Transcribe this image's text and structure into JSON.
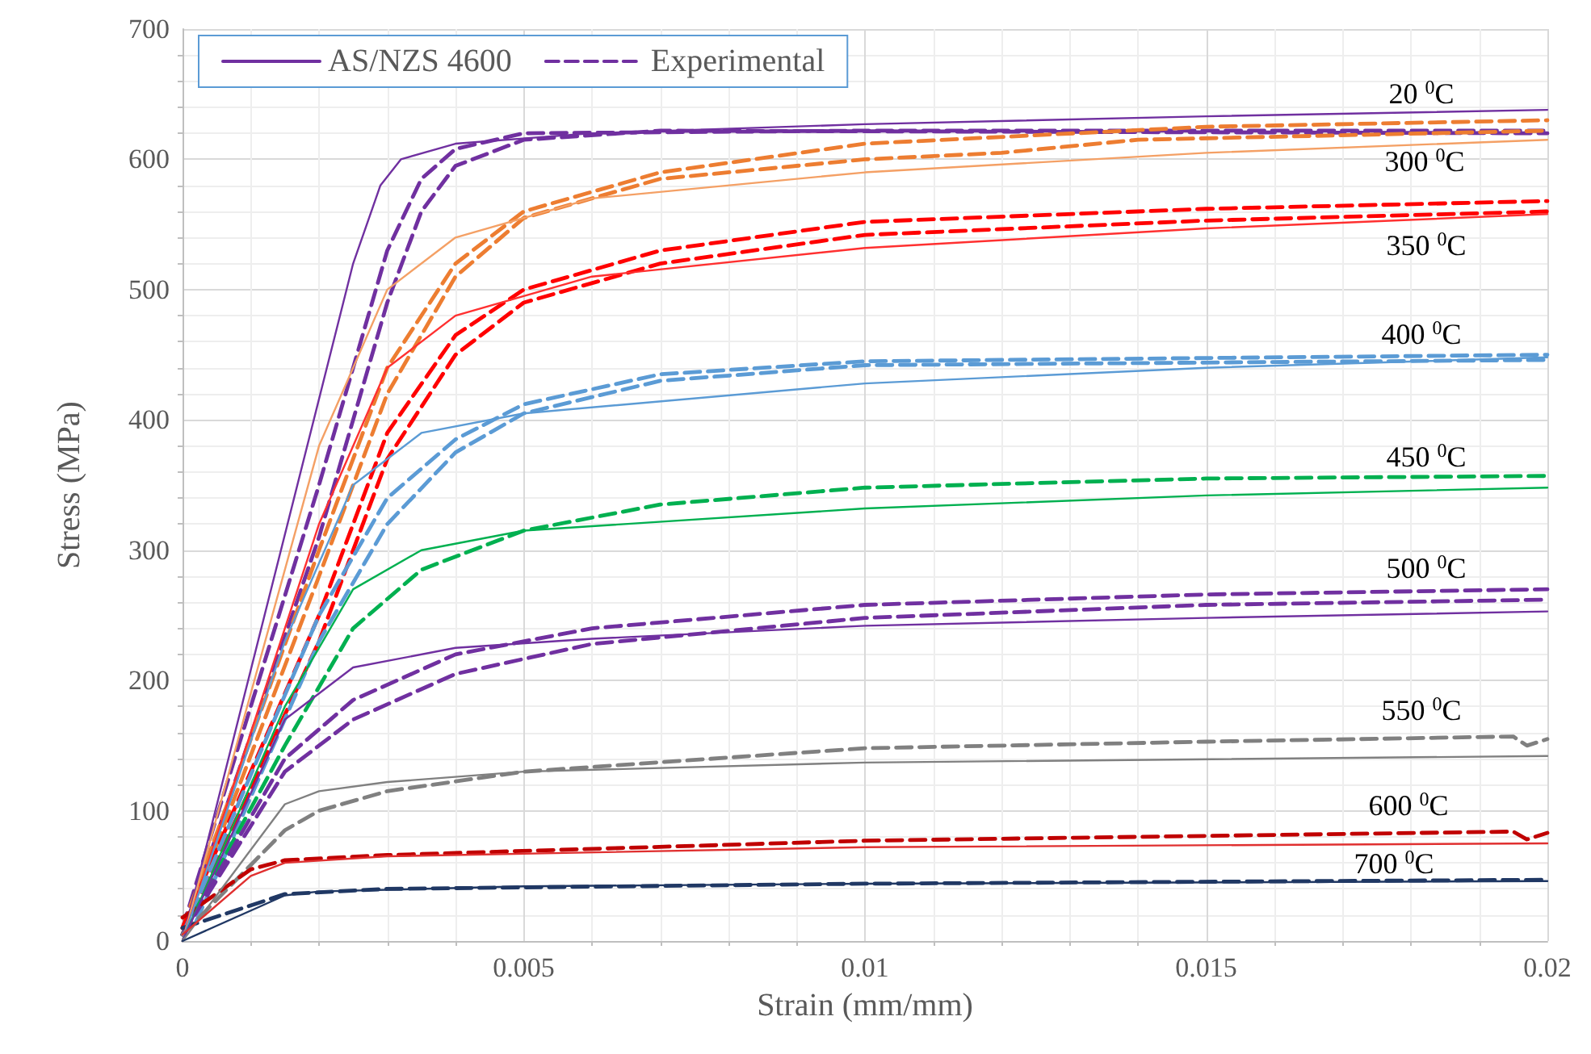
{
  "chart_data": {
    "type": "line",
    "xlabel": "Strain (mm/mm)",
    "ylabel": "Stress (MPa)",
    "xlim": [
      0,
      0.02
    ],
    "xticks": [
      0,
      0.005,
      0.01,
      0.015,
      0.02
    ],
    "ylim": [
      0,
      700
    ],
    "yticks": [
      0,
      100,
      200,
      300,
      400,
      500,
      600,
      700
    ],
    "grid": true,
    "legend": "top left",
    "marker": "none",
    "series": [
      {
        "name": "AS/NZS 4600",
        "color": "#7030a0",
        "line_style": "solid",
        "x": [
          0,
          0.0025,
          0.0029,
          0.0032,
          0.004,
          0.006,
          0.01,
          0.015,
          0.02
        ],
        "values": [
          0,
          520,
          580,
          600,
          612,
          620,
          627,
          633,
          638
        ]
      },
      {
        "name": "Experimental",
        "color": "#7030a0",
        "line_style": "dashed",
        "x": [
          0,
          0.002,
          0.003,
          0.0035,
          0.004,
          0.005,
          0.01,
          0.02
        ],
        "values": [
          10,
          350,
          530,
          585,
          608,
          620,
          622,
          622
        ]
      },
      {
        "color": "#7030a0",
        "line_style": "dashed",
        "x": [
          0,
          0.002,
          0.003,
          0.0035,
          0.004,
          0.005,
          0.007,
          0.02
        ],
        "values": [
          5,
          310,
          490,
          560,
          595,
          615,
          622,
          620
        ]
      },
      {
        "color": "#f4a065",
        "line_style": "solid",
        "x": [
          0,
          0.002,
          0.003,
          0.004,
          0.006,
          0.01,
          0.015,
          0.02
        ],
        "values": [
          0,
          380,
          500,
          540,
          570,
          590,
          605,
          615
        ]
      },
      {
        "color": "#ed7d31",
        "line_style": "dashed",
        "x": [
          0,
          0.002,
          0.003,
          0.004,
          0.005,
          0.007,
          0.01,
          0.015,
          0.02
        ],
        "values": [
          10,
          300,
          440,
          520,
          560,
          590,
          612,
          625,
          630
        ]
      },
      {
        "color": "#ed7d31",
        "line_style": "dashed",
        "x": [
          0,
          0.002,
          0.003,
          0.004,
          0.005,
          0.007,
          0.01,
          0.012,
          0.014,
          0.02
        ],
        "values": [
          5,
          280,
          420,
          510,
          555,
          585,
          600,
          605,
          615,
          622
        ]
      },
      {
        "color": "#ff3030",
        "line_style": "solid",
        "x": [
          0,
          0.002,
          0.003,
          0.004,
          0.006,
          0.01,
          0.015,
          0.02
        ],
        "values": [
          0,
          320,
          440,
          480,
          510,
          532,
          547,
          558
        ]
      },
      {
        "color": "#ff0000",
        "line_style": "dashed",
        "x": [
          0,
          0.002,
          0.003,
          0.004,
          0.005,
          0.007,
          0.01,
          0.015,
          0.02
        ],
        "values": [
          10,
          250,
          390,
          465,
          500,
          530,
          552,
          562,
          568
        ]
      },
      {
        "color": "#ff0000",
        "line_style": "dashed",
        "x": [
          0,
          0.002,
          0.003,
          0.004,
          0.005,
          0.007,
          0.01,
          0.015,
          0.02
        ],
        "values": [
          5,
          230,
          370,
          450,
          490,
          520,
          542,
          553,
          560
        ]
      },
      {
        "color": "#5b9bd5",
        "line_style": "solid",
        "x": [
          0,
          0.0015,
          0.0025,
          0.0035,
          0.005,
          0.01,
          0.015,
          0.02
        ],
        "values": [
          0,
          230,
          350,
          390,
          405,
          428,
          440,
          448
        ]
      },
      {
        "color": "#5b9bd5",
        "line_style": "dashed",
        "x": [
          0,
          0.002,
          0.003,
          0.004,
          0.005,
          0.007,
          0.01,
          0.02
        ],
        "values": [
          5,
          250,
          340,
          385,
          412,
          435,
          445,
          450
        ]
      },
      {
        "color": "#5b9bd5",
        "line_style": "dashed",
        "x": [
          0.0002,
          0.002,
          0.003,
          0.004,
          0.005,
          0.007,
          0.01,
          0.02
        ],
        "values": [
          15,
          230,
          320,
          375,
          405,
          430,
          442,
          446
        ]
      },
      {
        "color": "#00b050",
        "line_style": "solid",
        "x": [
          0,
          0.0015,
          0.0025,
          0.0035,
          0.005,
          0.01,
          0.015,
          0.02
        ],
        "values": [
          0,
          180,
          270,
          300,
          315,
          332,
          342,
          348
        ]
      },
      {
        "color": "#00b050",
        "line_style": "dashed",
        "x": [
          0,
          0.0015,
          0.0025,
          0.0035,
          0.005,
          0.007,
          0.01,
          0.015,
          0.02
        ],
        "values": [
          5,
          150,
          240,
          285,
          315,
          335,
          348,
          355,
          357
        ]
      },
      {
        "color": "#7030a0",
        "line_style": "solid",
        "x": [
          0,
          0.0015,
          0.0025,
          0.004,
          0.006,
          0.01,
          0.015,
          0.02
        ],
        "values": [
          0,
          170,
          210,
          225,
          232,
          242,
          248,
          253
        ]
      },
      {
        "color": "#7030a0",
        "line_style": "dashed",
        "x": [
          0,
          0.0015,
          0.0025,
          0.004,
          0.006,
          0.01,
          0.015,
          0.02
        ],
        "values": [
          5,
          140,
          185,
          220,
          240,
          258,
          266,
          270
        ]
      },
      {
        "color": "#7030a0",
        "line_style": "dashed",
        "x": [
          0,
          0.0015,
          0.0025,
          0.004,
          0.006,
          0.01,
          0.015,
          0.02
        ],
        "values": [
          5,
          130,
          170,
          205,
          228,
          248,
          258,
          262
        ]
      },
      {
        "color": "#808080",
        "line_style": "solid",
        "x": [
          0,
          0.0015,
          0.002,
          0.003,
          0.005,
          0.01,
          0.02
        ],
        "values": [
          0,
          105,
          115,
          122,
          130,
          137,
          142
        ]
      },
      {
        "color": "#808080",
        "line_style": "dashed",
        "x": [
          0,
          0.0015,
          0.002,
          0.003,
          0.005,
          0.01,
          0.015,
          0.0195,
          0.0197,
          0.02
        ],
        "values": [
          5,
          85,
          100,
          115,
          130,
          148,
          153,
          157,
          150,
          155
        ]
      },
      {
        "color": "#e03030",
        "line_style": "solid",
        "x": [
          0,
          0.001,
          0.0015,
          0.003,
          0.01,
          0.02
        ],
        "values": [
          5,
          50,
          60,
          65,
          72,
          75
        ]
      },
      {
        "color": "#c00000",
        "line_style": "dashed",
        "x": [
          0,
          0.001,
          0.0015,
          0.003,
          0.01,
          0.0195,
          0.0197,
          0.02
        ],
        "values": [
          18,
          55,
          62,
          66,
          77,
          84,
          78,
          83
        ]
      },
      {
        "color": "#203864",
        "line_style": "solid",
        "x": [
          0,
          0.0015,
          0.002,
          0.005,
          0.01,
          0.02
        ],
        "values": [
          0,
          35,
          38,
          42,
          44,
          46
        ]
      },
      {
        "color": "#203864",
        "line_style": "dashed",
        "x": [
          0,
          0.0015,
          0.003,
          0.01,
          0.02
        ],
        "values": [
          10,
          36,
          40,
          44,
          47
        ]
      }
    ],
    "annotations": [
      "20 $^{0}$C",
      "300 $^{0}$C",
      "350 $^{0}$C",
      "400 $^{0}$C",
      "450 $^{0}$C",
      "500 $^{0}$C",
      "550 $^{0}$C",
      "600 $^{0}$C",
      "700 $^{0}$C"
    ]
  }
}
